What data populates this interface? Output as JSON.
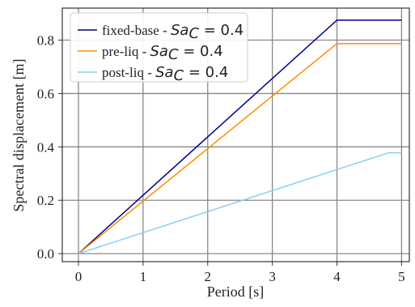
{
  "chart_data": {
    "type": "line",
    "xlabel": "Period [s]",
    "ylabel": "Spectral displacement [m]",
    "xlim": [
      -0.25,
      5.12
    ],
    "ylim": [
      -0.03,
      0.92
    ],
    "xticks": [
      0,
      1,
      2,
      3,
      4,
      5
    ],
    "yticks": [
      0.0,
      0.2,
      0.4,
      0.6,
      0.8
    ],
    "xtick_labels": [
      "0",
      "1",
      "2",
      "3",
      "4",
      "5"
    ],
    "ytick_labels": [
      "0.0",
      "0.2",
      "0.4",
      "0.6",
      "0.8"
    ],
    "grid": true,
    "legend_position": "top-left",
    "series": [
      {
        "name_text": "fixed-base - ",
        "name_math": "Sa",
        "name_sub": "C",
        "name_rest": " = 0.4",
        "color": "#00008b",
        "x": [
          0,
          4,
          5
        ],
        "y": [
          0.0,
          0.875,
          0.875
        ]
      },
      {
        "name_text": "pre-liq - ",
        "name_math": "Sa",
        "name_sub": "C",
        "name_rest": " = 0.4",
        "color": "#ff8c00",
        "x": [
          0,
          4,
          5
        ],
        "y": [
          0.0,
          0.787,
          0.787
        ]
      },
      {
        "name_text": "post-liq - ",
        "name_math": "Sa",
        "name_sub": "C",
        "name_rest": " = 0.4",
        "color": "#87cefa",
        "x": [
          0,
          4.8,
          5
        ],
        "y": [
          0.0,
          0.378,
          0.378
        ]
      }
    ]
  }
}
